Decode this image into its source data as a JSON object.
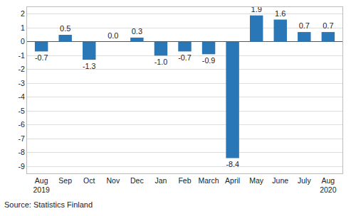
{
  "chart_data": {
    "type": "bar",
    "categories": [
      "Aug\n2019",
      "Sep",
      "Oct",
      "Nov",
      "Dec",
      "Jan",
      "Feb",
      "March",
      "April",
      "May",
      "June",
      "July",
      "Aug\n2020"
    ],
    "values": [
      -0.7,
      0.5,
      -1.3,
      0.0,
      0.3,
      -1.0,
      -0.7,
      -0.9,
      -8.4,
      1.9,
      1.6,
      0.7,
      0.7
    ],
    "value_labels": [
      "-0.7",
      "0.5",
      "-1.3",
      "0.0",
      "0.3",
      "-1.0",
      "-0.7",
      "-0.9",
      "-8.4",
      "1.9",
      "1.6",
      "0.7",
      "0.7"
    ],
    "color": "#2a77b8",
    "ylim": [
      -9.5,
      2.5
    ],
    "yticks": [
      -9,
      -8,
      -7,
      -6,
      -5,
      -4,
      -3,
      -2,
      -1,
      0,
      1,
      2
    ],
    "grid": true,
    "data_labels": true,
    "source": "Source: Statistics Finland"
  }
}
